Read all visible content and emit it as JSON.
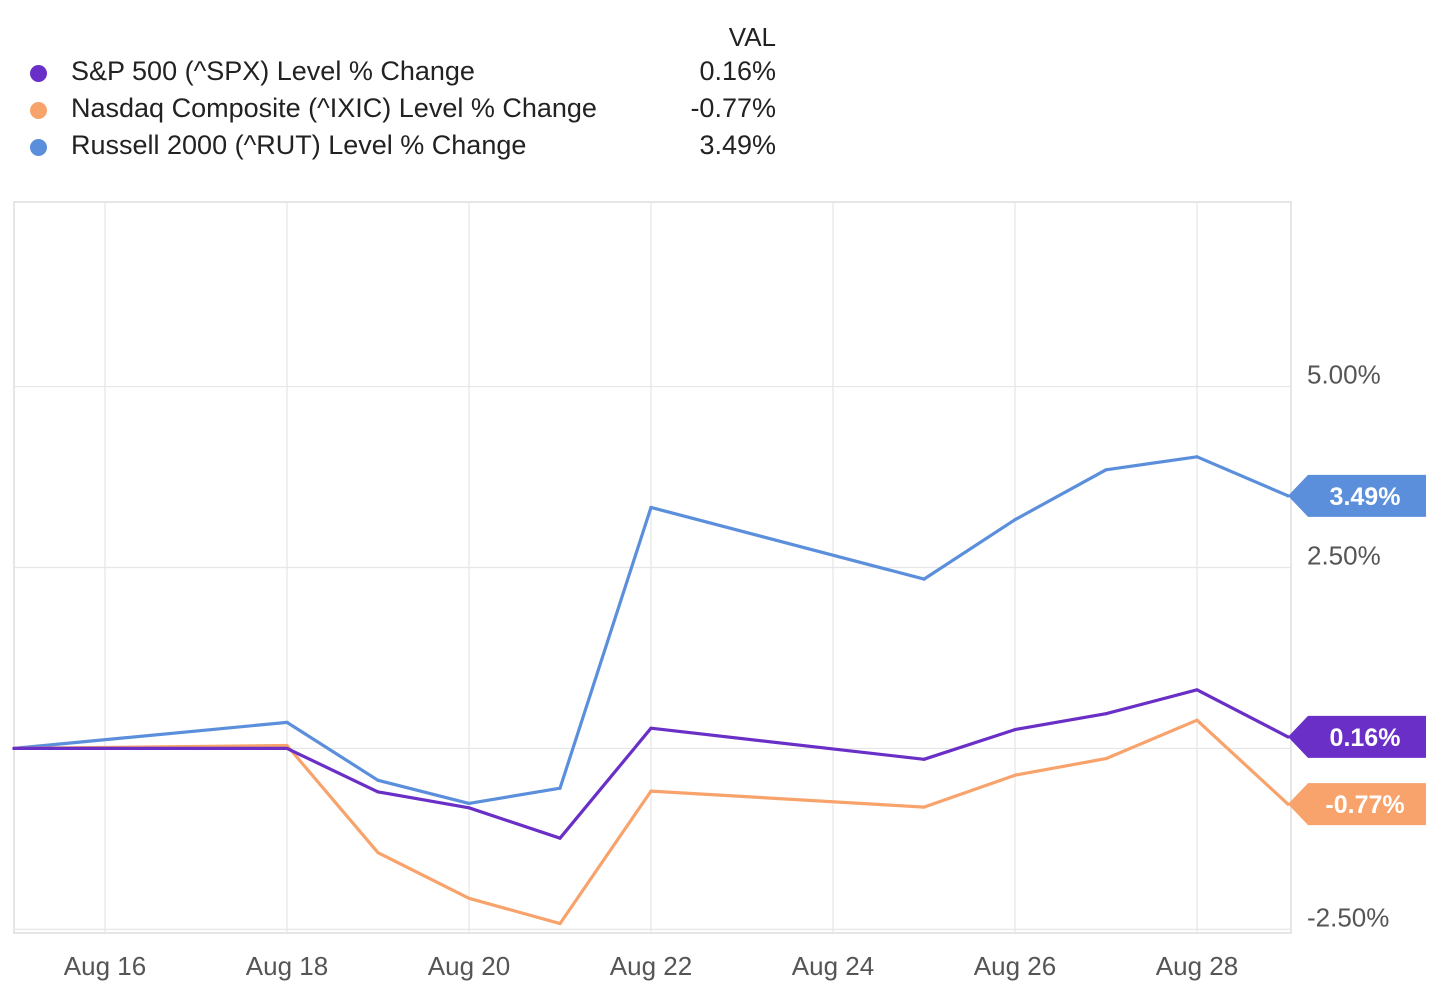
{
  "legend": {
    "header": "VAL"
  },
  "chart_data": {
    "type": "line",
    "x": [
      "Aug 15",
      "Aug 16",
      "Aug 17",
      "Aug 18",
      "Aug 19",
      "Aug 20",
      "Aug 21",
      "Aug 22",
      "Aug 23",
      "Aug 24",
      "Aug 25",
      "Aug 26",
      "Aug 27",
      "Aug 28",
      "Aug 29"
    ],
    "x_tick_labels": [
      "Aug 16",
      "Aug 18",
      "Aug 20",
      "Aug 22",
      "Aug 24",
      "Aug 26",
      "Aug 28"
    ],
    "y_tick_labels": [
      "5.00%",
      "2.50%",
      "-2.50%"
    ],
    "y_ticks": [
      5.0,
      2.5,
      -2.5
    ],
    "ylim": [
      -2.55,
      7.55
    ],
    "grid": true,
    "legend_position": "top-left",
    "series": [
      {
        "name": "S&P 500 (^SPX) Level % Change",
        "legend_value": "0.16%",
        "end_label": "0.16%",
        "color": "#6a2fc7",
        "points": [
          {
            "x": "Aug 15",
            "y": 0.0
          },
          {
            "x": "Aug 18",
            "y": 0.0
          },
          {
            "x": "Aug 19",
            "y": -0.6
          },
          {
            "x": "Aug 20",
            "y": -0.82
          },
          {
            "x": "Aug 21",
            "y": -1.24
          },
          {
            "x": "Aug 22",
            "y": 0.28
          },
          {
            "x": "Aug 25",
            "y": -0.15
          },
          {
            "x": "Aug 26",
            "y": 0.26
          },
          {
            "x": "Aug 27",
            "y": 0.48
          },
          {
            "x": "Aug 28",
            "y": 0.81
          },
          {
            "x": "Aug 29",
            "y": 0.16
          }
        ]
      },
      {
        "name": "Nasdaq Composite (^IXIC) Level % Change",
        "legend_value": "-0.77%",
        "end_label": "-0.77%",
        "color": "#f8a36b",
        "points": [
          {
            "x": "Aug 15",
            "y": 0.0
          },
          {
            "x": "Aug 18",
            "y": 0.04
          },
          {
            "x": "Aug 19",
            "y": -1.44
          },
          {
            "x": "Aug 20",
            "y": -2.07
          },
          {
            "x": "Aug 21",
            "y": -2.42
          },
          {
            "x": "Aug 22",
            "y": -0.59
          },
          {
            "x": "Aug 25",
            "y": -0.81
          },
          {
            "x": "Aug 26",
            "y": -0.37
          },
          {
            "x": "Aug 27",
            "y": -0.14
          },
          {
            "x": "Aug 28",
            "y": 0.39
          },
          {
            "x": "Aug 29",
            "y": -0.77
          }
        ]
      },
      {
        "name": "Russell 2000 (^RUT) Level % Change",
        "legend_value": "3.49%",
        "end_label": "3.49%",
        "color": "#5b8fdb",
        "points": [
          {
            "x": "Aug 15",
            "y": 0.0
          },
          {
            "x": "Aug 18",
            "y": 0.36
          },
          {
            "x": "Aug 19",
            "y": -0.44
          },
          {
            "x": "Aug 20",
            "y": -0.76
          },
          {
            "x": "Aug 21",
            "y": -0.55
          },
          {
            "x": "Aug 22",
            "y": 3.33
          },
          {
            "x": "Aug 25",
            "y": 2.34
          },
          {
            "x": "Aug 26",
            "y": 3.16
          },
          {
            "x": "Aug 27",
            "y": 3.85
          },
          {
            "x": "Aug 28",
            "y": 4.03
          },
          {
            "x": "Aug 29",
            "y": 3.49
          }
        ]
      }
    ]
  }
}
